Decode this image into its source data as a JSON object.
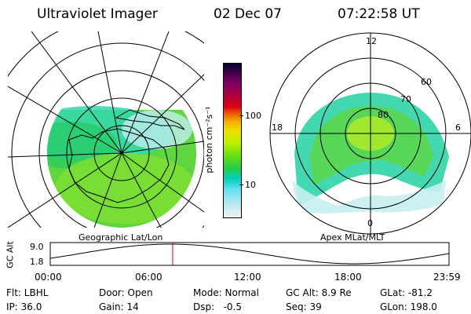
{
  "header": {
    "instrument": "Ultraviolet Imager",
    "date": "02 Dec 07",
    "time": "07:22:58 UT"
  },
  "left_map": {
    "caption": "Geographic Lat/Lon"
  },
  "right_map": {
    "caption": "Apex MLat/MLT",
    "mlt_labels": {
      "top": "12",
      "left": "18",
      "right": "6",
      "bottom": "0"
    },
    "lat_labels": [
      "60",
      "70",
      "80"
    ]
  },
  "colorbar": {
    "unit_label": "photon cm⁻²s⁻¹",
    "ticks": [
      "100",
      "10"
    ],
    "colors": [
      "#000033",
      "#440044",
      "#770066",
      "#aa0044",
      "#dd0011",
      "#ee6600",
      "#f5b000",
      "#f0e000",
      "#b8f000",
      "#66e011",
      "#22cc44",
      "#00d0c0",
      "#66e0f0",
      "#b0e8f0",
      "#f0f0f0"
    ]
  },
  "orbit": {
    "ylabel": "GC Alt",
    "ytick_top": "9.0",
    "ytick_bottom": "1.8",
    "xticks": [
      "00:00",
      "06:00",
      "12:00",
      "18:00",
      "23:59"
    ],
    "current_time_fraction": 0.307
  },
  "status": {
    "row1": [
      {
        "label": "Flt: LBHL"
      },
      {
        "label": "Door: Open"
      },
      {
        "label": "Mode: Normal"
      },
      {
        "label": "GC Alt: 8.9 Re"
      },
      {
        "label": "GLat: -81.2"
      }
    ],
    "row2": [
      {
        "label": "IP: 36.0"
      },
      {
        "label": "Gain: 14"
      },
      {
        "label": "Dsp:   -0.5"
      },
      {
        "label": "Seq: 39"
      },
      {
        "label": "GLon: 198.0"
      }
    ]
  }
}
